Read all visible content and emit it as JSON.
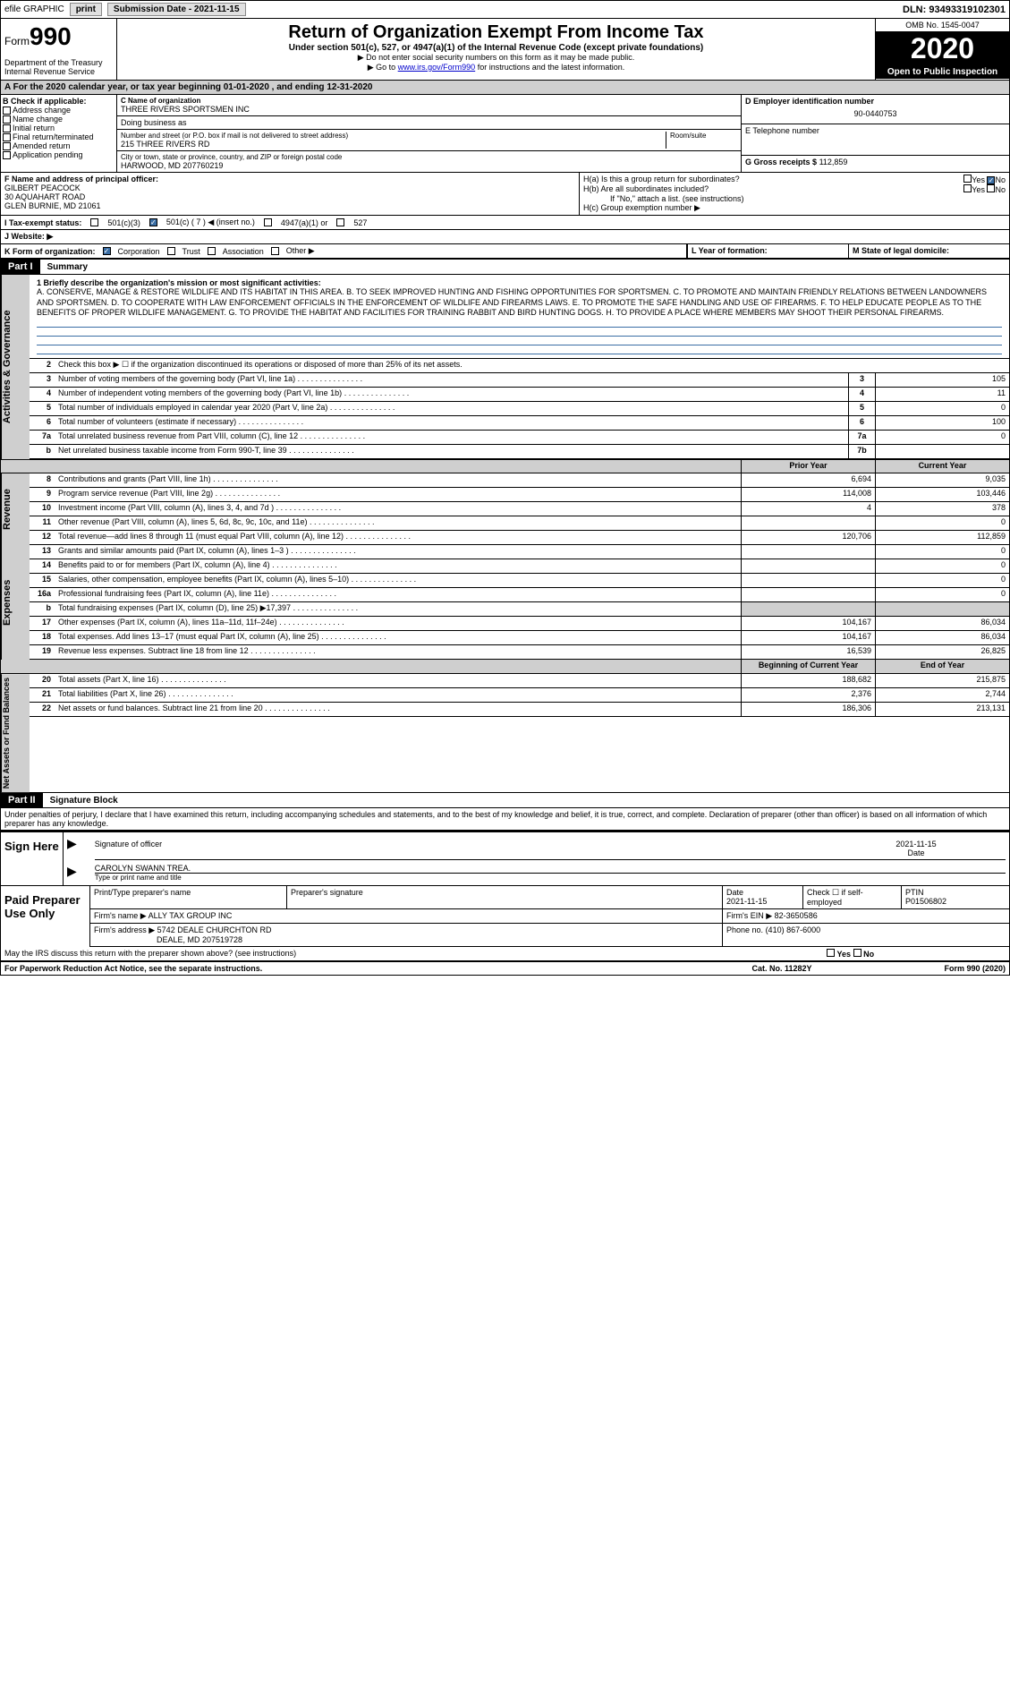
{
  "topbar": {
    "efile": "efile GRAPHIC",
    "print": "print",
    "submission_label": "Submission Date - 2021-11-15",
    "dln": "DLN: 93493319102301"
  },
  "header": {
    "form_label": "Form",
    "form_num": "990",
    "dept": "Department of the Treasury\nInternal Revenue Service",
    "title": "Return of Organization Exempt From Income Tax",
    "subtitle": "Under section 501(c), 527, or 4947(a)(1) of the Internal Revenue Code (except private foundations)",
    "instr1": "▶ Do not enter social security numbers on this form as it may be made public.",
    "instr2_pre": "▶ Go to ",
    "instr2_link": "www.irs.gov/Form990",
    "instr2_post": " for instructions and the latest information.",
    "omb": "OMB No. 1545-0047",
    "year": "2020",
    "open": "Open to Public Inspection"
  },
  "period": "A For the 2020 calendar year, or tax year beginning 01-01-2020    , and ending 12-31-2020",
  "section_b": {
    "label": "B Check if applicable:",
    "items": [
      "Address change",
      "Name change",
      "Initial return",
      "Final return/terminated",
      "Amended return",
      "Application pending"
    ]
  },
  "section_c": {
    "name_label": "C Name of organization",
    "name": "THREE RIVERS SPORTSMEN INC",
    "dba_label": "Doing business as",
    "dba": "",
    "addr_label": "Number and street (or P.O. box if mail is not delivered to street address)",
    "addr": "215 THREE RIVERS RD",
    "room_label": "Room/suite",
    "city_label": "City or town, state or province, country, and ZIP or foreign postal code",
    "city": "HARWOOD, MD  207760219"
  },
  "section_d": {
    "label": "D Employer identification number",
    "value": "90-0440753"
  },
  "section_e": {
    "label": "E Telephone number",
    "value": ""
  },
  "section_g": {
    "label": "G Gross receipts $",
    "value": "112,859"
  },
  "section_f": {
    "label": "F  Name and address of principal officer:",
    "name": "GILBERT PEACOCK",
    "addr1": "30 AQUAHART ROAD",
    "addr2": "GLEN BURNIE, MD  21061"
  },
  "section_h": {
    "ha": "H(a)  Is this a group return for subordinates?",
    "hb": "H(b)  Are all subordinates included?",
    "hb_note": "If \"No,\" attach a list. (see instructions)",
    "hc": "H(c)  Group exemption number ▶",
    "yes": "Yes",
    "no": "No"
  },
  "tax_status": {
    "label": "I    Tax-exempt status:",
    "c3": "501(c)(3)",
    "c": "501(c) ( 7 ) ◀ (insert no.)",
    "a1": "4947(a)(1) or",
    "s527": "527"
  },
  "website": {
    "label": "J   Website: ▶"
  },
  "section_k": {
    "label": "K Form of organization:",
    "corp": "Corporation",
    "trust": "Trust",
    "assoc": "Association",
    "other": "Other ▶"
  },
  "section_l": "L Year of formation:",
  "section_m": "M State of legal domicile:",
  "part1": {
    "header": "Part I",
    "title": "Summary"
  },
  "mission": {
    "label": "1   Briefly describe the organization's mission or most significant activities:",
    "text": "A. CONSERVE, MANAGE & RESTORE WILDLIFE AND ITS HABITAT IN THIS AREA. B. TO SEEK IMPROVED HUNTING AND FISHING OPPORTUNITIES FOR SPORTSMEN. C. TO PROMOTE AND MAINTAIN FRIENDLY RELATIONS BETWEEN LANDOWNERS AND SPORTSMEN. D. TO COOPERATE WITH LAW ENFORCEMENT OFFICIALS IN THE ENFORCEMENT OF WILDLIFE AND FIREARMS LAWS. E. TO PROMOTE THE SAFE HANDLING AND USE OF FIREARMS. F. TO HELP EDUCATE PEOPLE AS TO THE BENEFITS OF PROPER WILDLIFE MANAGEMENT. G. TO PROVIDE THE HABITAT AND FACILITIES FOR TRAINING RABBIT AND BIRD HUNTING DOGS. H. TO PROVIDE A PLACE WHERE MEMBERS MAY SHOOT THEIR PERSONAL FIREARMS."
  },
  "activities": {
    "line2": "Check this box ▶ ☐ if the organization discontinued its operations or disposed of more than 25% of its net assets.",
    "rows": [
      {
        "n": "3",
        "d": "Number of voting members of the governing body (Part VI, line 1a)",
        "box": "3",
        "v": "105"
      },
      {
        "n": "4",
        "d": "Number of independent voting members of the governing body (Part VI, line 1b)",
        "box": "4",
        "v": "11"
      },
      {
        "n": "5",
        "d": "Total number of individuals employed in calendar year 2020 (Part V, line 2a)",
        "box": "5",
        "v": "0"
      },
      {
        "n": "6",
        "d": "Total number of volunteers (estimate if necessary)",
        "box": "6",
        "v": "100"
      },
      {
        "n": "7a",
        "d": "Total unrelated business revenue from Part VIII, column (C), line 12",
        "box": "7a",
        "v": "0"
      },
      {
        "n": "b",
        "d": "Net unrelated business taxable income from Form 990-T, line 39",
        "box": "7b",
        "v": ""
      }
    ]
  },
  "col_headers": {
    "prior": "Prior Year",
    "current": "Current Year",
    "begin": "Beginning of Current Year",
    "end": "End of Year"
  },
  "revenue": {
    "label": "Revenue",
    "rows": [
      {
        "n": "8",
        "d": "Contributions and grants (Part VIII, line 1h)",
        "p": "6,694",
        "c": "9,035"
      },
      {
        "n": "9",
        "d": "Program service revenue (Part VIII, line 2g)",
        "p": "114,008",
        "c": "103,446"
      },
      {
        "n": "10",
        "d": "Investment income (Part VIII, column (A), lines 3, 4, and 7d )",
        "p": "4",
        "c": "378"
      },
      {
        "n": "11",
        "d": "Other revenue (Part VIII, column (A), lines 5, 6d, 8c, 9c, 10c, and 11e)",
        "p": "",
        "c": "0"
      },
      {
        "n": "12",
        "d": "Total revenue—add lines 8 through 11 (must equal Part VIII, column (A), line 12)",
        "p": "120,706",
        "c": "112,859"
      }
    ]
  },
  "expenses": {
    "label": "Expenses",
    "rows": [
      {
        "n": "13",
        "d": "Grants and similar amounts paid (Part IX, column (A), lines 1–3 )",
        "p": "",
        "c": "0"
      },
      {
        "n": "14",
        "d": "Benefits paid to or for members (Part IX, column (A), line 4)",
        "p": "",
        "c": "0"
      },
      {
        "n": "15",
        "d": "Salaries, other compensation, employee benefits (Part IX, column (A), lines 5–10)",
        "p": "",
        "c": "0"
      },
      {
        "n": "16a",
        "d": "Professional fundraising fees (Part IX, column (A), line 11e)",
        "p": "",
        "c": "0"
      },
      {
        "n": "b",
        "d": "Total fundraising expenses (Part IX, column (D), line 25) ▶17,397",
        "p": "gray",
        "c": "gray"
      },
      {
        "n": "17",
        "d": "Other expenses (Part IX, column (A), lines 11a–11d, 11f–24e)",
        "p": "104,167",
        "c": "86,034"
      },
      {
        "n": "18",
        "d": "Total expenses. Add lines 13–17 (must equal Part IX, column (A), line 25)",
        "p": "104,167",
        "c": "86,034"
      },
      {
        "n": "19",
        "d": "Revenue less expenses. Subtract line 18 from line 12",
        "p": "16,539",
        "c": "26,825"
      }
    ]
  },
  "netassets": {
    "label": "Net Assets or Fund Balances",
    "rows": [
      {
        "n": "20",
        "d": "Total assets (Part X, line 16)",
        "p": "188,682",
        "c": "215,875"
      },
      {
        "n": "21",
        "d": "Total liabilities (Part X, line 26)",
        "p": "2,376",
        "c": "2,744"
      },
      {
        "n": "22",
        "d": "Net assets or fund balances. Subtract line 21 from line 20",
        "p": "186,306",
        "c": "213,131"
      }
    ]
  },
  "part2": {
    "header": "Part II",
    "title": "Signature Block"
  },
  "perjury": "Under penalties of perjury, I declare that I have examined this return, including accompanying schedules and statements, and to the best of my knowledge and belief, it is true, correct, and complete. Declaration of preparer (other than officer) is based on all information of which preparer has any knowledge.",
  "sign": {
    "label": "Sign Here",
    "sig_label": "Signature of officer",
    "date_label": "Date",
    "date": "2021-11-15",
    "name": "CAROLYN SWANN  TREA.",
    "name_label": "Type or print name and title"
  },
  "preparer": {
    "label": "Paid Preparer Use Only",
    "print_label": "Print/Type preparer's name",
    "sig_label": "Preparer's signature",
    "date_label": "Date",
    "date": "2021-11-15",
    "check_label": "Check ☐ if self-employed",
    "ptin_label": "PTIN",
    "ptin": "P01506802",
    "firm_name_label": "Firm's name    ▶",
    "firm_name": "ALLY TAX GROUP INC",
    "firm_ein_label": "Firm's EIN ▶",
    "firm_ein": "82-3650586",
    "firm_addr_label": "Firm's address ▶",
    "firm_addr1": "5742 DEALE CHURCHTON RD",
    "firm_addr2": "DEALE, MD  207519728",
    "phone_label": "Phone no.",
    "phone": "(410) 867-6000"
  },
  "discuss": "May the IRS discuss this return with the preparer shown above? (see instructions)",
  "footer": {
    "paperwork": "For Paperwork Reduction Act Notice, see the separate instructions.",
    "cat": "Cat. No. 11282Y",
    "form": "Form 990 (2020)"
  }
}
